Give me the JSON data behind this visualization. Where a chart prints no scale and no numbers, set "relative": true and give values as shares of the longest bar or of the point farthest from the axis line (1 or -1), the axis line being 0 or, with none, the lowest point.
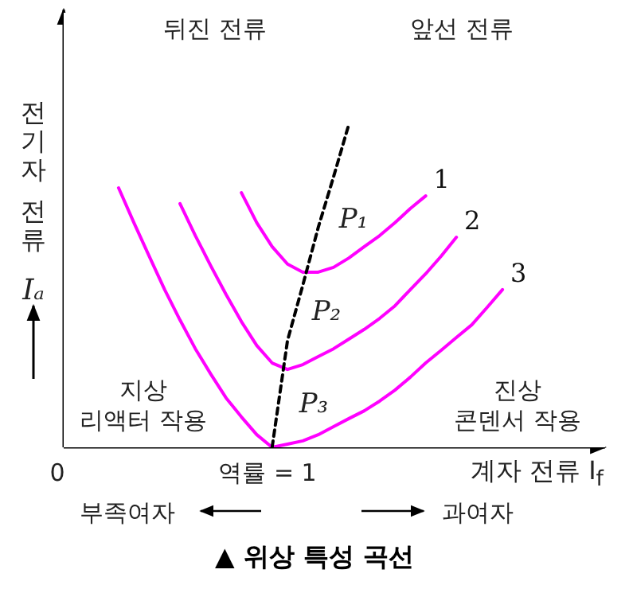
{
  "chart_data": {
    "type": "line",
    "relative": true,
    "title": "▲ 위상 특성 곡선",
    "ylabel": "전기자 전류 Iₐ",
    "xlabel": "계자 전류 I$_{f}$",
    "categories": [
      null,
      null,
      null,
      null,
      null,
      null,
      null,
      null,
      null,
      null,
      null,
      null,
      null,
      null,
      null,
      null,
      null,
      null,
      null,
      null,
      null,
      null,
      null,
      null,
      null,
      null,
      null,
      null
    ],
    "series": [
      {
        "name": "1",
        "color": "#ff00ff",
        "values": [
          null,
          null,
          null,
          null,
          null,
          null,
          null,
          null,
          null,
          0.788,
          0.695,
          0.621,
          0.567,
          0.542,
          0.542,
          0.557,
          0.586,
          0.621,
          0.655,
          0.695,
          0.739,
          0.778,
          null,
          null,
          null,
          null,
          null,
          null
        ]
      },
      {
        "name": "2",
        "color": "#ff00ff",
        "values": [
          null,
          null,
          null,
          null,
          null,
          0.754,
          0.655,
          0.562,
          0.473,
          0.389,
          0.315,
          0.261,
          0.241,
          0.256,
          0.281,
          0.305,
          0.335,
          0.365,
          0.399,
          0.438,
          0.488,
          0.537,
          0.591,
          0.65,
          null,
          null,
          null,
          null
        ]
      },
      {
        "name": "3",
        "color": "#ff00ff",
        "values": [
          null,
          0.803,
          0.695,
          0.591,
          0.488,
          0.394,
          0.305,
          0.227,
          0.153,
          0.094,
          0.039,
          0,
          0.01,
          0.02,
          0.039,
          0.064,
          0.089,
          0.113,
          0.143,
          0.177,
          0.217,
          0.261,
          0.3,
          0.34,
          0.379,
          0.433,
          0.488,
          null
        ]
      },
      {
        "color": "#000000",
        "line_style": "dashed",
        "values": [
          null,
          null,
          null,
          null,
          null,
          null,
          null,
          null,
          null,
          null,
          null,
          0,
          0.33,
          0.502,
          0.68,
          0.837,
          1,
          null,
          null,
          null,
          null,
          null,
          null,
          null,
          null,
          null,
          null,
          null
        ]
      }
    ],
    "annotations": [
      "뒤진 전류",
      "앞선 전류",
      "지상\n리액터 작용",
      "진상\n콘덴서 작용",
      "0",
      "역률 = 1",
      "부족여자",
      "과여자",
      "P₁",
      "P₂",
      "P₃"
    ]
  }
}
